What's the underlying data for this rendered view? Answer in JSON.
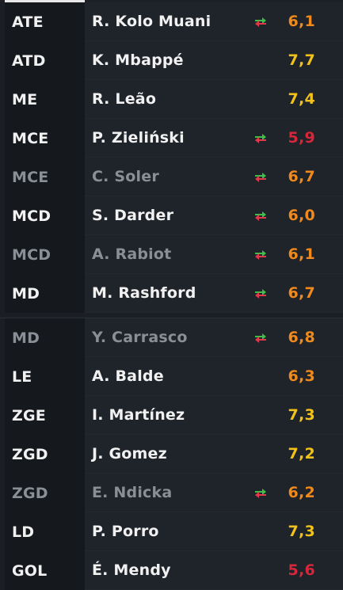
{
  "colors": {
    "background": "#1b1e24",
    "position_col": "#15181d",
    "row_bg": "#1f232a",
    "text": "#f1f1f1",
    "text_dim": "#8a8f97",
    "rating_yellow": "#f2c21b",
    "rating_orange": "#f08a1c",
    "rating_red": "#d8263a",
    "sub_arrow_green": "#3fbf4a",
    "sub_arrow_red": "#e2384a"
  },
  "players": [
    {
      "position": "ATE",
      "name": "R. Kolo Muani",
      "rating": "6,1",
      "rating_color": "#f08a1c",
      "substituted": true,
      "dimmed": false
    },
    {
      "position": "ATD",
      "name": "K. Mbappé",
      "rating": "7,7",
      "rating_color": "#f2c21b",
      "substituted": false,
      "dimmed": false
    },
    {
      "position": "ME",
      "name": "R. Leão",
      "rating": "7,4",
      "rating_color": "#f2c21b",
      "substituted": false,
      "dimmed": false
    },
    {
      "position": "MCE",
      "name": "P. Zieliński",
      "rating": "5,9",
      "rating_color": "#d8263a",
      "substituted": true,
      "dimmed": false
    },
    {
      "position": "MCE",
      "name": "C. Soler",
      "rating": "6,7",
      "rating_color": "#f08a1c",
      "substituted": true,
      "dimmed": true
    },
    {
      "position": "MCD",
      "name": "S. Darder",
      "rating": "6,0",
      "rating_color": "#f08a1c",
      "substituted": true,
      "dimmed": false
    },
    {
      "position": "MCD",
      "name": "A. Rabiot",
      "rating": "6,1",
      "rating_color": "#f08a1c",
      "substituted": true,
      "dimmed": true
    },
    {
      "position": "MD",
      "name": "M. Rashford",
      "rating": "6,7",
      "rating_color": "#f08a1c",
      "substituted": true,
      "dimmed": false
    },
    {
      "position": "MD",
      "name": "Y. Carrasco",
      "rating": "6,8",
      "rating_color": "#f08a1c",
      "substituted": true,
      "dimmed": true
    },
    {
      "position": "LE",
      "name": "A. Balde",
      "rating": "6,3",
      "rating_color": "#f08a1c",
      "substituted": false,
      "dimmed": false
    },
    {
      "position": "ZGE",
      "name": "I. Martínez",
      "rating": "7,3",
      "rating_color": "#f2c21b",
      "substituted": false,
      "dimmed": false
    },
    {
      "position": "ZGD",
      "name": "J. Gomez",
      "rating": "7,2",
      "rating_color": "#f2c21b",
      "substituted": false,
      "dimmed": false
    },
    {
      "position": "ZGD",
      "name": "E. Ndicka",
      "rating": "6,2",
      "rating_color": "#f08a1c",
      "substituted": true,
      "dimmed": true
    },
    {
      "position": "LD",
      "name": "P. Porro",
      "rating": "7,3",
      "rating_color": "#f2c21b",
      "substituted": false,
      "dimmed": false
    },
    {
      "position": "GOL",
      "name": "É. Mendy",
      "rating": "5,6",
      "rating_color": "#d8263a",
      "substituted": false,
      "dimmed": false
    }
  ]
}
